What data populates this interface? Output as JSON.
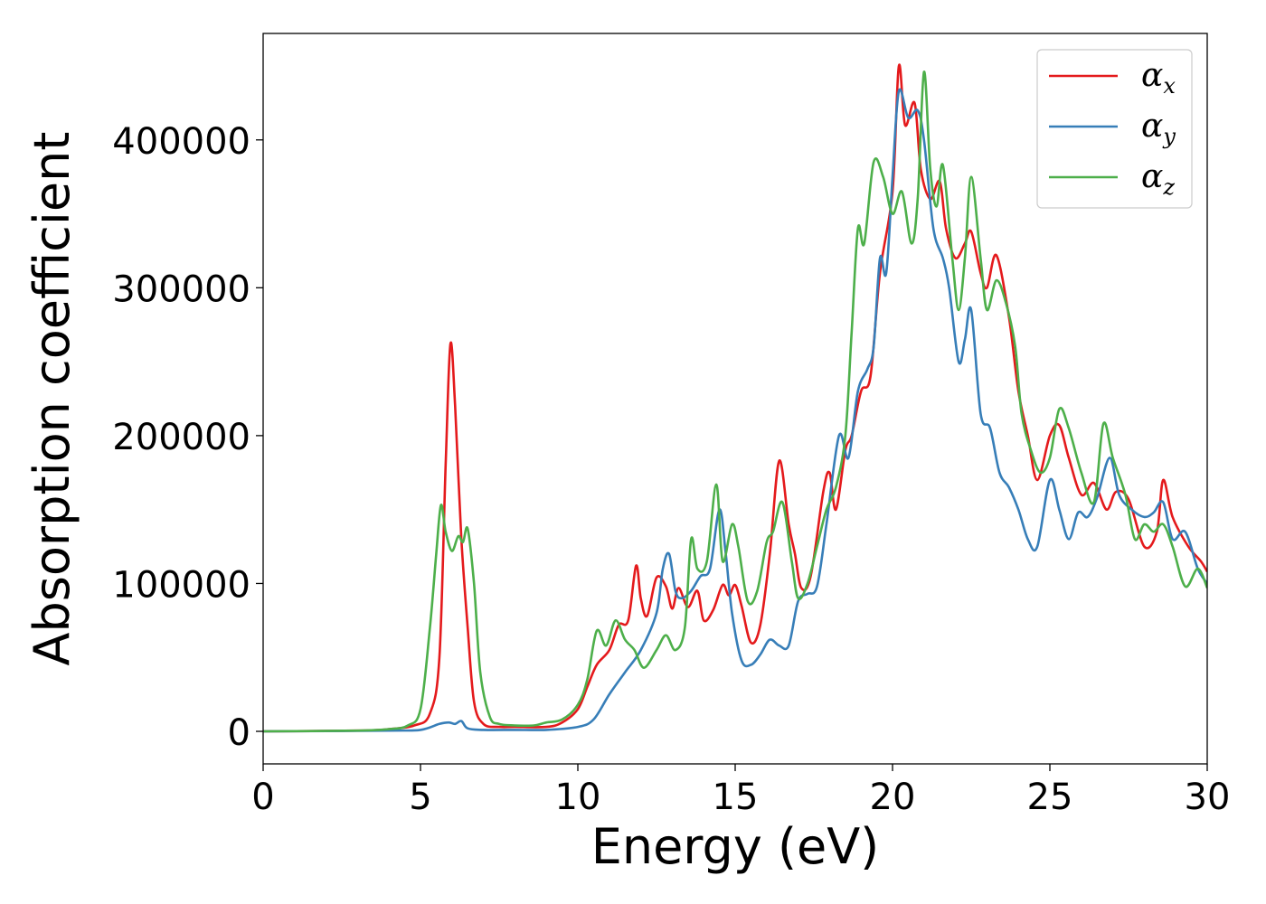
{
  "chart_data": {
    "type": "line",
    "title": "",
    "xlabel": "Energy (eV)",
    "ylabel": "Absorption coefficient",
    "xlim": [
      0,
      30
    ],
    "ylim": [
      -22000,
      472000
    ],
    "xticks": [
      0,
      5,
      10,
      15,
      20,
      25,
      30
    ],
    "yticks": [
      0,
      100000,
      200000,
      300000,
      400000
    ],
    "grid": false,
    "legend_position": "top-right",
    "series": [
      {
        "name": "α",
        "subscript": "x",
        "color": "#e41a1c",
        "points": [
          [
            0,
            0
          ],
          [
            3,
            500
          ],
          [
            4,
            1500
          ],
          [
            4.8,
            4000
          ],
          [
            5.3,
            12000
          ],
          [
            5.6,
            50000
          ],
          [
            5.8,
            180000
          ],
          [
            5.95,
            262000
          ],
          [
            6.1,
            220000
          ],
          [
            6.3,
            130000
          ],
          [
            6.5,
            70000
          ],
          [
            6.7,
            20000
          ],
          [
            7,
            5000
          ],
          [
            7.5,
            3000
          ],
          [
            8,
            3000
          ],
          [
            9,
            3000
          ],
          [
            9.5,
            6000
          ],
          [
            10,
            15000
          ],
          [
            10.3,
            30000
          ],
          [
            10.6,
            45000
          ],
          [
            11,
            55000
          ],
          [
            11.3,
            72000
          ],
          [
            11.6,
            75000
          ],
          [
            11.85,
            112000
          ],
          [
            12,
            90000
          ],
          [
            12.2,
            78000
          ],
          [
            12.5,
            104000
          ],
          [
            12.8,
            98000
          ],
          [
            13,
            83000
          ],
          [
            13.2,
            97000
          ],
          [
            13.5,
            84000
          ],
          [
            13.8,
            95000
          ],
          [
            14,
            75000
          ],
          [
            14.3,
            82000
          ],
          [
            14.6,
            99000
          ],
          [
            14.8,
            92000
          ],
          [
            15,
            99000
          ],
          [
            15.2,
            85000
          ],
          [
            15.5,
            60000
          ],
          [
            15.8,
            72000
          ],
          [
            16.1,
            120000
          ],
          [
            16.4,
            183000
          ],
          [
            16.7,
            140000
          ],
          [
            16.9,
            120000
          ],
          [
            17.1,
            97000
          ],
          [
            17.4,
            105000
          ],
          [
            17.8,
            162000
          ],
          [
            18,
            175000
          ],
          [
            18.2,
            150000
          ],
          [
            18.5,
            190000
          ],
          [
            18.7,
            200000
          ],
          [
            19,
            230000
          ],
          [
            19.3,
            240000
          ],
          [
            19.6,
            310000
          ],
          [
            20,
            365000
          ],
          [
            20.2,
            450000
          ],
          [
            20.4,
            410000
          ],
          [
            20.7,
            425000
          ],
          [
            20.9,
            380000
          ],
          [
            21.2,
            360000
          ],
          [
            21.5,
            372000
          ],
          [
            21.7,
            340000
          ],
          [
            22,
            320000
          ],
          [
            22.3,
            330000
          ],
          [
            22.5,
            338000
          ],
          [
            22.8,
            310000
          ],
          [
            23,
            300000
          ],
          [
            23.3,
            322000
          ],
          [
            23.7,
            280000
          ],
          [
            24,
            230000
          ],
          [
            24.3,
            200000
          ],
          [
            24.6,
            170000
          ],
          [
            25,
            200000
          ],
          [
            25.3,
            207000
          ],
          [
            25.6,
            185000
          ],
          [
            26,
            160000
          ],
          [
            26.4,
            168000
          ],
          [
            26.8,
            150000
          ],
          [
            27.1,
            162000
          ],
          [
            27.5,
            157000
          ],
          [
            28,
            125000
          ],
          [
            28.4,
            135000
          ],
          [
            28.6,
            170000
          ],
          [
            28.9,
            145000
          ],
          [
            29.4,
            125000
          ],
          [
            29.8,
            115000
          ],
          [
            30,
            108000
          ]
        ]
      },
      {
        "name": "α",
        "subscript": "y",
        "color": "#377eb8",
        "points": [
          [
            0,
            0
          ],
          [
            4,
            500
          ],
          [
            5,
            1000
          ],
          [
            5.6,
            5000
          ],
          [
            5.9,
            6000
          ],
          [
            6.1,
            5000
          ],
          [
            6.3,
            7000
          ],
          [
            6.5,
            2000
          ],
          [
            7,
            1000
          ],
          [
            8,
            1000
          ],
          [
            9,
            1000
          ],
          [
            10,
            3000
          ],
          [
            10.5,
            8000
          ],
          [
            11,
            25000
          ],
          [
            11.5,
            40000
          ],
          [
            12,
            55000
          ],
          [
            12.5,
            80000
          ],
          [
            12.7,
            110000
          ],
          [
            12.9,
            120000
          ],
          [
            13.1,
            95000
          ],
          [
            13.3,
            90000
          ],
          [
            13.6,
            95000
          ],
          [
            13.9,
            105000
          ],
          [
            14.2,
            110000
          ],
          [
            14.5,
            150000
          ],
          [
            14.7,
            120000
          ],
          [
            14.9,
            80000
          ],
          [
            15.2,
            48000
          ],
          [
            15.5,
            45000
          ],
          [
            15.8,
            52000
          ],
          [
            16.1,
            62000
          ],
          [
            16.4,
            58000
          ],
          [
            16.7,
            58000
          ],
          [
            17,
            88000
          ],
          [
            17.3,
            93000
          ],
          [
            17.6,
            98000
          ],
          [
            17.9,
            140000
          ],
          [
            18.3,
            200000
          ],
          [
            18.6,
            185000
          ],
          [
            18.9,
            230000
          ],
          [
            19.2,
            245000
          ],
          [
            19.4,
            260000
          ],
          [
            19.6,
            320000
          ],
          [
            19.8,
            310000
          ],
          [
            20,
            375000
          ],
          [
            20.2,
            433000
          ],
          [
            20.5,
            415000
          ],
          [
            20.8,
            420000
          ],
          [
            21,
            400000
          ],
          [
            21.3,
            340000
          ],
          [
            21.6,
            320000
          ],
          [
            21.8,
            300000
          ],
          [
            22.1,
            250000
          ],
          [
            22.3,
            265000
          ],
          [
            22.5,
            285000
          ],
          [
            22.8,
            215000
          ],
          [
            23.1,
            205000
          ],
          [
            23.4,
            175000
          ],
          [
            23.7,
            165000
          ],
          [
            24,
            150000
          ],
          [
            24.3,
            130000
          ],
          [
            24.6,
            125000
          ],
          [
            25,
            170000
          ],
          [
            25.3,
            150000
          ],
          [
            25.6,
            130000
          ],
          [
            25.9,
            148000
          ],
          [
            26.2,
            145000
          ],
          [
            26.5,
            158000
          ],
          [
            26.9,
            185000
          ],
          [
            27.2,
            160000
          ],
          [
            27.6,
            150000
          ],
          [
            28,
            145000
          ],
          [
            28.3,
            148000
          ],
          [
            28.6,
            155000
          ],
          [
            28.9,
            130000
          ],
          [
            29.3,
            135000
          ],
          [
            29.7,
            110000
          ],
          [
            30,
            100000
          ]
        ]
      },
      {
        "name": "α",
        "subscript": "z",
        "color": "#4daf4a",
        "points": [
          [
            0,
            0
          ],
          [
            3,
            500
          ],
          [
            4,
            1500
          ],
          [
            4.6,
            4000
          ],
          [
            5,
            15000
          ],
          [
            5.3,
            70000
          ],
          [
            5.5,
            120000
          ],
          [
            5.65,
            153000
          ],
          [
            5.8,
            135000
          ],
          [
            6,
            122000
          ],
          [
            6.2,
            132000
          ],
          [
            6.35,
            128000
          ],
          [
            6.5,
            137000
          ],
          [
            6.7,
            100000
          ],
          [
            6.9,
            40000
          ],
          [
            7.2,
            10000
          ],
          [
            7.5,
            5000
          ],
          [
            8,
            4000
          ],
          [
            8.6,
            4000
          ],
          [
            9,
            6000
          ],
          [
            9.5,
            8000
          ],
          [
            10,
            18000
          ],
          [
            10.3,
            35000
          ],
          [
            10.6,
            68000
          ],
          [
            10.9,
            58000
          ],
          [
            11.2,
            75000
          ],
          [
            11.5,
            62000
          ],
          [
            11.8,
            55000
          ],
          [
            12.1,
            43000
          ],
          [
            12.5,
            55000
          ],
          [
            12.8,
            65000
          ],
          [
            13.1,
            55000
          ],
          [
            13.4,
            70000
          ],
          [
            13.6,
            130000
          ],
          [
            13.8,
            110000
          ],
          [
            14.1,
            115000
          ],
          [
            14.4,
            167000
          ],
          [
            14.6,
            115000
          ],
          [
            14.9,
            140000
          ],
          [
            15.1,
            125000
          ],
          [
            15.4,
            88000
          ],
          [
            15.7,
            95000
          ],
          [
            16,
            128000
          ],
          [
            16.2,
            135000
          ],
          [
            16.5,
            155000
          ],
          [
            16.8,
            115000
          ],
          [
            17,
            90000
          ],
          [
            17.3,
            100000
          ],
          [
            17.6,
            125000
          ],
          [
            17.9,
            150000
          ],
          [
            18.2,
            165000
          ],
          [
            18.5,
            200000
          ],
          [
            18.7,
            270000
          ],
          [
            18.9,
            340000
          ],
          [
            19.1,
            330000
          ],
          [
            19.4,
            385000
          ],
          [
            19.7,
            375000
          ],
          [
            20,
            350000
          ],
          [
            20.3,
            365000
          ],
          [
            20.6,
            330000
          ],
          [
            20.8,
            360000
          ],
          [
            21,
            446000
          ],
          [
            21.2,
            380000
          ],
          [
            21.4,
            355000
          ],
          [
            21.6,
            383000
          ],
          [
            21.9,
            320000
          ],
          [
            22.1,
            285000
          ],
          [
            22.3,
            320000
          ],
          [
            22.5,
            375000
          ],
          [
            22.8,
            320000
          ],
          [
            23,
            285000
          ],
          [
            23.3,
            305000
          ],
          [
            23.6,
            290000
          ],
          [
            23.9,
            260000
          ],
          [
            24.1,
            215000
          ],
          [
            24.4,
            190000
          ],
          [
            24.7,
            175000
          ],
          [
            25,
            185000
          ],
          [
            25.3,
            218000
          ],
          [
            25.6,
            205000
          ],
          [
            26,
            175000
          ],
          [
            26.4,
            155000
          ],
          [
            26.7,
            208000
          ],
          [
            27,
            185000
          ],
          [
            27.4,
            160000
          ],
          [
            27.7,
            130000
          ],
          [
            28,
            140000
          ],
          [
            28.3,
            135000
          ],
          [
            28.6,
            140000
          ],
          [
            28.9,
            125000
          ],
          [
            29.3,
            98000
          ],
          [
            29.7,
            110000
          ],
          [
            30,
            97000
          ]
        ]
      }
    ]
  }
}
